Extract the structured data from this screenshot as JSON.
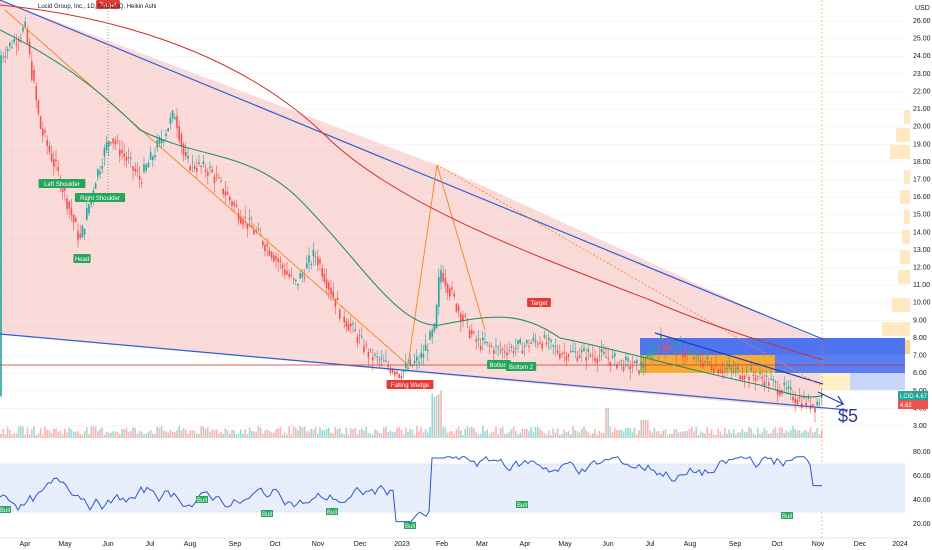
{
  "header": {
    "title": "Lucid Group, Inc., 1D, NASDAQ, Heikin Ashi"
  },
  "colors": {
    "wedge_fill": "#f9d2d2",
    "wedge_line": "#2f5fd0",
    "ema_green": "#1e8c5a",
    "ema_red": "#d32f2f",
    "pattern_orange": "#f5841f",
    "rsi_line": "#2d58c8",
    "rsi_band": "#e8eefc",
    "label_green": "#26a65b",
    "label_red": "#e53935",
    "bull_candle": "#26a69a",
    "bear_candle": "#ef5350"
  },
  "chart_data": {
    "type": "candlestick",
    "series": [
      {
        "name": "LCID",
        "last": "4.67"
      }
    ],
    "y_axis": {
      "currency": "USD",
      "ticks": [
        "26.00",
        "25.00",
        "24.00",
        "23.00",
        "22.00",
        "21.00",
        "20.00",
        "19.00",
        "18.00",
        "17.00",
        "16.00",
        "15.00",
        "14.00",
        "13.00",
        "12.00",
        "11.00",
        "10.00",
        "9.00",
        "8.00",
        "7.00",
        "6.00",
        "5.00",
        "4.00",
        "3.00"
      ]
    },
    "x_axis": {
      "ticks": [
        "Apr",
        "May",
        "Jun",
        "Jul",
        "Aug",
        "Sep",
        "Oct",
        "Nov",
        "Dec",
        "2023",
        "Feb",
        "Mar",
        "Apr",
        "May",
        "Jun",
        "Jul",
        "Aug",
        "Sep",
        "Oct",
        "Nov",
        "Dec",
        "2024"
      ]
    },
    "price_tags": [
      {
        "label": "LCID",
        "value": "4.67"
      },
      {
        "label": "",
        "value": "4.62"
      }
    ],
    "annotations": [
      "Target",
      "Left Shoulder",
      "Right Shoulder",
      "Head",
      "Falling Wedge",
      "Bottom",
      "Bottom 2",
      "Target",
      "$5"
    ],
    "rsi": {
      "ticks": [
        "80.00",
        "60.00",
        "40.00",
        "20.00"
      ],
      "bull_labels": [
        "Bull",
        "Bull",
        "Bull",
        "Bull",
        "Bull",
        "Bull",
        "Bull"
      ]
    }
  }
}
